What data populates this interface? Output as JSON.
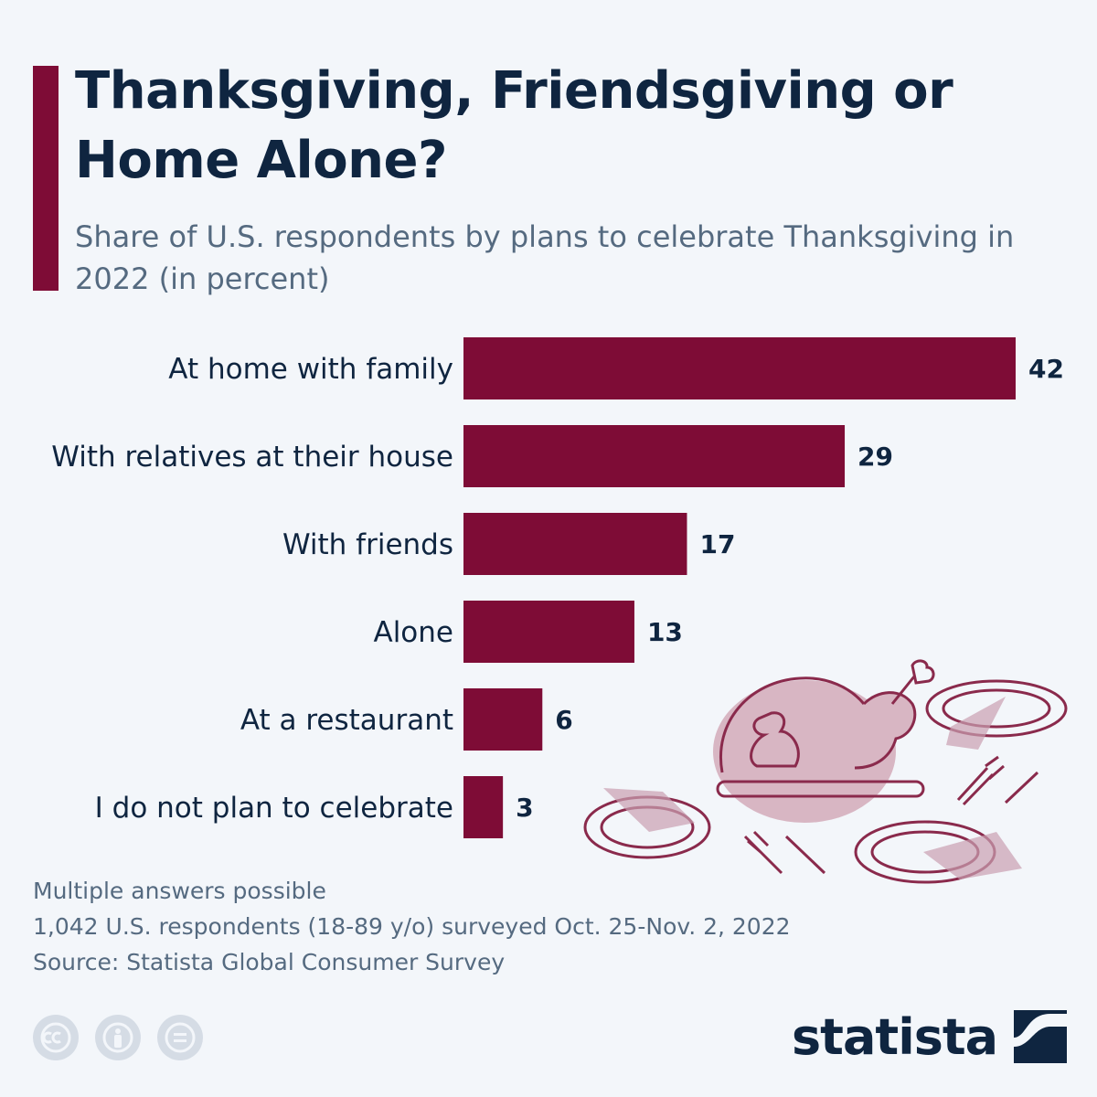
{
  "header": {
    "title": "Thanksgiving, Friendsgiving or Home Alone?",
    "subtitle": "Share of U.S. respondents by plans to celebrate Thanksgiving in 2022 (in percent)"
  },
  "colors": {
    "accent": "#7e0c36",
    "bar": "#7e0c36",
    "text_dark": "#0f2540",
    "text_muted": "#556a80",
    "background": "#f3f6fa",
    "illustration": "#9b3a5a"
  },
  "chart_data": {
    "type": "bar",
    "orientation": "horizontal",
    "categories": [
      "At home with family",
      "With relatives at their house",
      "With friends",
      "Alone",
      "At a restaurant",
      "I do not plan to celebrate"
    ],
    "values": [
      42,
      29,
      17,
      13,
      6,
      3
    ],
    "title": "Thanksgiving, Friendsgiving or Home Alone?",
    "subtitle": "Share of U.S. respondents by plans to celebrate Thanksgiving in 2022 (in percent)",
    "xlabel": "",
    "ylabel": "",
    "xlim": [
      0,
      42
    ],
    "grid": false,
    "legend": "none",
    "data_labels": true
  },
  "footer": {
    "notes": [
      "Multiple answers possible",
      "1,042 U.S. respondents (18-89 y/o) surveyed Oct. 25-Nov. 2, 2022",
      "Source: Statista Global Consumer Survey"
    ],
    "license_icons": [
      "cc-icon",
      "attribution-icon",
      "no-derivatives-icon"
    ],
    "brand": "statista"
  }
}
